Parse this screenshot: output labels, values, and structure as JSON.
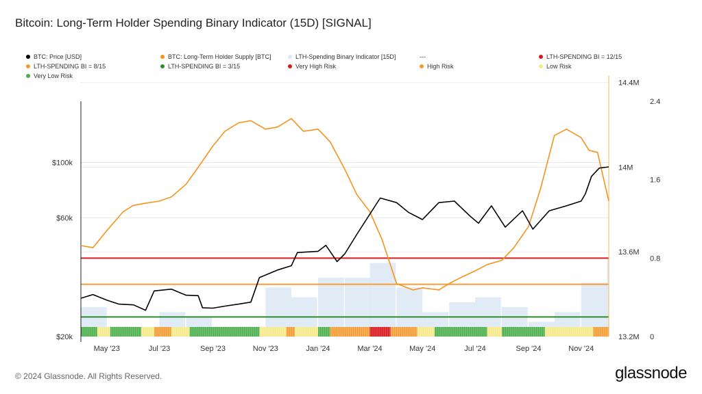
{
  "title": "Bitcoin: Long-Term Holder Spending Binary Indicator (15D) [SIGNAL]",
  "legend": [
    {
      "label": "BTC: Price [USD]",
      "color": "#000000"
    },
    {
      "label": "BTC: Long-Term Holder Supply [BTC]",
      "color": "#f7931a"
    },
    {
      "label": "LTH-Spending Binary Indicator [15D]",
      "color": "#dbe8f5"
    },
    {
      "label": "---",
      "color": ""
    },
    {
      "label": "LTH-SPENDING BI = 12/15",
      "color": "#d7191c"
    },
    {
      "label": "LTH-SPENDING BI = 8/15",
      "color": "#f39c33"
    },
    {
      "label": "LTH-SPENDING BI = 3/15",
      "color": "#2e8b2e"
    },
    {
      "label": "Very High Risk",
      "color": "#d7191c"
    },
    {
      "label": "High Risk",
      "color": "#f39c33"
    },
    {
      "label": "Low Risk",
      "color": "#f5ea8a"
    },
    {
      "label": "Very Low Risk",
      "color": "#4cae4c"
    }
  ],
  "chart_data": {
    "type": "line",
    "x_ticks": [
      "May '23",
      "Jul '23",
      "Sep '23",
      "Nov '23",
      "Jan '24",
      "Mar '24",
      "May '24",
      "Jul '24",
      "Sep '24",
      "Nov '24"
    ],
    "x_range": [
      "2023-04-01",
      "2024-12-03"
    ],
    "y_left": {
      "ticks": [
        "$20k",
        "$60k",
        "$100k"
      ],
      "tick_values": [
        20000,
        60000,
        100000
      ],
      "scale": "log",
      "range": [
        20000,
        200000
      ]
    },
    "y_right1": {
      "ticks": [
        "13.2M",
        "13.6M",
        "14M",
        "14.4M"
      ],
      "tick_values": [
        13200000,
        13600000,
        14000000,
        14400000
      ],
      "range": [
        13200000,
        14400000
      ]
    },
    "y_right2": {
      "ticks": [
        "0",
        "0.8",
        "1.6",
        "2.4"
      ],
      "tick_values": [
        0,
        0.8,
        1.6,
        2.4
      ],
      "range": [
        0,
        2.4
      ]
    },
    "thresholds": [
      {
        "name": "LTH-SPENDING BI = 12/15",
        "value": 0.8,
        "color": "#d7191c"
      },
      {
        "name": "LTH-SPENDING BI = 8/15",
        "value": 0.5333,
        "color": "#f39c33"
      },
      {
        "name": "LTH-SPENDING BI = 3/15",
        "value": 0.2,
        "color": "#2e8b2e"
      }
    ],
    "series": [
      {
        "name": "BTC: Price [USD]",
        "axis": "left",
        "color": "#000000",
        "x": [
          "2023-04-01",
          "2023-04-15",
          "2023-05-01",
          "2023-05-15",
          "2023-06-01",
          "2023-06-15",
          "2023-06-25",
          "2023-07-15",
          "2023-08-01",
          "2023-08-15",
          "2023-08-20",
          "2023-09-01",
          "2023-09-15",
          "2023-10-01",
          "2023-10-15",
          "2023-10-25",
          "2023-11-15",
          "2023-12-01",
          "2023-12-08",
          "2024-01-01",
          "2024-01-10",
          "2024-01-23",
          "2024-02-01",
          "2024-02-15",
          "2024-03-01",
          "2024-03-13",
          "2024-04-01",
          "2024-04-15",
          "2024-05-01",
          "2024-05-20",
          "2024-06-07",
          "2024-06-25",
          "2024-07-05",
          "2024-07-20",
          "2024-08-05",
          "2024-08-25",
          "2024-09-06",
          "2024-09-25",
          "2024-10-15",
          "2024-11-01",
          "2024-11-06",
          "2024-11-13",
          "2024-11-22",
          "2024-12-03"
        ],
        "values": [
          28500,
          29500,
          28000,
          27000,
          26800,
          25500,
          30500,
          31000,
          29300,
          29200,
          26100,
          26000,
          26500,
          27000,
          27500,
          34500,
          37000,
          38500,
          43500,
          44000,
          46500,
          40000,
          43000,
          51500,
          62000,
          72000,
          69000,
          63000,
          59000,
          69000,
          70000,
          61000,
          57000,
          67000,
          55000,
          64000,
          54000,
          64000,
          67000,
          70000,
          75000,
          88000,
          95000,
          96000
        ]
      },
      {
        "name": "BTC: Long-Term Holder Supply [BTC]",
        "axis": "right1",
        "color": "#f7931a",
        "x": [
          "2023-04-01",
          "2023-04-15",
          "2023-05-01",
          "2023-05-20",
          "2023-06-01",
          "2023-06-15",
          "2023-07-01",
          "2023-07-15",
          "2023-08-01",
          "2023-08-15",
          "2023-09-01",
          "2023-09-15",
          "2023-10-01",
          "2023-10-15",
          "2023-11-01",
          "2023-11-15",
          "2023-12-01",
          "2023-12-15",
          "2024-01-01",
          "2024-01-15",
          "2024-02-01",
          "2024-02-15",
          "2024-03-01",
          "2024-03-15",
          "2024-04-01",
          "2024-04-20",
          "2024-05-01",
          "2024-05-20",
          "2024-06-01",
          "2024-06-15",
          "2024-07-01",
          "2024-07-15",
          "2024-08-01",
          "2024-08-15",
          "2024-09-01",
          "2024-09-15",
          "2024-10-01",
          "2024-10-15",
          "2024-11-01",
          "2024-11-10",
          "2024-11-20",
          "2024-12-03"
        ],
        "values": [
          13630000,
          13620000,
          13700000,
          13790000,
          13820000,
          13830000,
          13840000,
          13860000,
          13920000,
          14000000,
          14100000,
          14170000,
          14210000,
          14220000,
          14180000,
          14190000,
          14230000,
          14170000,
          14180000,
          14120000,
          13990000,
          13870000,
          13790000,
          13660000,
          13450000,
          13420000,
          13430000,
          13420000,
          13450000,
          13480000,
          13510000,
          13540000,
          13560000,
          13620000,
          13720000,
          13900000,
          14150000,
          14180000,
          14140000,
          14080000,
          14070000,
          13840000
        ]
      },
      {
        "name": "LTH-Spending Binary Indicator [15D]",
        "axis": "right2",
        "type": "bar",
        "color": "#dbe8f5",
        "x": [
          "2023-04",
          "2023-05",
          "2023-06",
          "2023-07",
          "2023-08",
          "2023-09",
          "2023-10",
          "2023-11",
          "2023-12",
          "2024-01",
          "2024-02",
          "2024-03",
          "2024-04",
          "2024-05",
          "2024-06",
          "2024-07",
          "2024-08",
          "2024-09",
          "2024-10",
          "2024-11",
          "2024-12"
        ],
        "values": [
          0.3,
          0.1,
          0.0,
          0.25,
          0.2,
          0.05,
          0.1,
          0.5,
          0.4,
          0.6,
          0.6,
          0.75,
          0.5,
          0.25,
          0.35,
          0.4,
          0.3,
          0.15,
          0.25,
          0.55,
          0.8
        ]
      }
    ],
    "risk_strip": {
      "labels": [
        "Very High Risk",
        "High Risk",
        "Low Risk",
        "Very Low Risk"
      ],
      "colors": [
        "#d7191c",
        "#f39c33",
        "#f5ea8a",
        "#4cae4c"
      ],
      "segments": [
        {
          "from": "2023-04-01",
          "to": "2023-04-20",
          "risk": "Very Low Risk"
        },
        {
          "from": "2023-04-20",
          "to": "2023-05-05",
          "risk": "Low Risk"
        },
        {
          "from": "2023-05-05",
          "to": "2023-06-10",
          "risk": "Very Low Risk"
        },
        {
          "from": "2023-06-10",
          "to": "2023-06-25",
          "risk": "Low Risk"
        },
        {
          "from": "2023-06-25",
          "to": "2023-07-15",
          "risk": "High Risk"
        },
        {
          "from": "2023-07-15",
          "to": "2023-08-05",
          "risk": "Low Risk"
        },
        {
          "from": "2023-08-05",
          "to": "2023-10-25",
          "risk": "Very Low Risk"
        },
        {
          "from": "2023-10-25",
          "to": "2023-11-25",
          "risk": "Low Risk"
        },
        {
          "from": "2023-11-25",
          "to": "2023-12-05",
          "risk": "High Risk"
        },
        {
          "from": "2023-12-05",
          "to": "2024-01-01",
          "risk": "Low Risk"
        },
        {
          "from": "2024-01-01",
          "to": "2024-01-15",
          "risk": "Very Low Risk"
        },
        {
          "from": "2024-01-15",
          "to": "2024-03-01",
          "risk": "High Risk"
        },
        {
          "from": "2024-03-01",
          "to": "2024-03-25",
          "risk": "Very High Risk"
        },
        {
          "from": "2024-03-25",
          "to": "2024-04-25",
          "risk": "High Risk"
        },
        {
          "from": "2024-04-25",
          "to": "2024-05-15",
          "risk": "Low Risk"
        },
        {
          "from": "2024-05-15",
          "to": "2024-07-15",
          "risk": "Very Low Risk"
        },
        {
          "from": "2024-07-15",
          "to": "2024-08-01",
          "risk": "Low Risk"
        },
        {
          "from": "2024-08-01",
          "to": "2024-09-20",
          "risk": "Very Low Risk"
        },
        {
          "from": "2024-09-20",
          "to": "2024-11-15",
          "risk": "Low Risk"
        },
        {
          "from": "2024-11-15",
          "to": "2024-12-03",
          "risk": "High Risk"
        }
      ]
    }
  },
  "footer": {
    "copyright": "© 2024 Glassnode. All Rights Reserved.",
    "brand": "glassnode"
  }
}
